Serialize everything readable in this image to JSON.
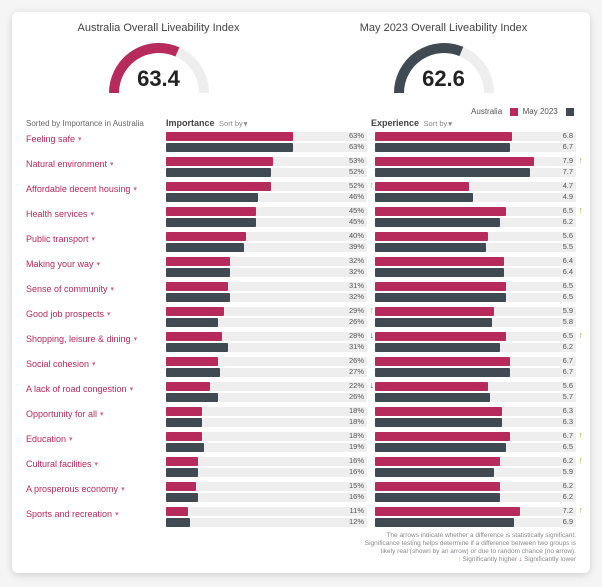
{
  "colors": {
    "primary": "#b62a5c",
    "secondary": "#3f4a52",
    "track": "#eeeeee",
    "sig_up": "#7bbf3f",
    "sig_down": "#b62a5c",
    "label_text": "#b62a5c",
    "muted": "#888888"
  },
  "gauges": [
    {
      "title": "Australia Overall Liveability Index",
      "value": "63.4",
      "fraction": 0.634,
      "arc_color": "#b62a5c"
    },
    {
      "title": "May 2023 Overall Liveability Index",
      "value": "62.6",
      "fraction": 0.626,
      "arc_color": "#3f4a52"
    }
  ],
  "legend": {
    "a_label": "Australia",
    "b_label": "May 2023"
  },
  "headers": {
    "sort_note": "Sorted by Importance in Australia",
    "col1": "Importance",
    "col2": "Experience",
    "sort_hint": "Sort by"
  },
  "groups": [
    {
      "name": "importance",
      "max": 100,
      "value_suffix": "%",
      "series": [
        {
          "key": "a",
          "color": "#b62a5c"
        },
        {
          "key": "b",
          "color": "#3f4a52"
        }
      ]
    },
    {
      "name": "experience",
      "max": 10,
      "value_suffix": "",
      "series": [
        {
          "key": "a",
          "color": "#b62a5c"
        },
        {
          "key": "b",
          "color": "#3f4a52"
        }
      ]
    }
  ],
  "rows": [
    {
      "label": "Feeling safe",
      "importance": {
        "a": 63,
        "b": 63
      },
      "experience": {
        "a": 6.8,
        "b": 6.7
      }
    },
    {
      "label": "Natural environment",
      "importance": {
        "a": 53,
        "b": 52
      },
      "experience": {
        "a": 7.9,
        "b": 7.7,
        "sig_a": "up"
      }
    },
    {
      "label": "Affordable decent housing",
      "importance": {
        "a": 52,
        "b": 46,
        "sig_a": "up"
      },
      "experience": {
        "a": 4.7,
        "b": 4.9
      }
    },
    {
      "label": "Health services",
      "importance": {
        "a": 45,
        "b": 45
      },
      "experience": {
        "a": 6.5,
        "b": 6.2,
        "sig_a": "up"
      }
    },
    {
      "label": "Public transport",
      "importance": {
        "a": 40,
        "b": 39
      },
      "experience": {
        "a": 5.6,
        "b": 5.5
      }
    },
    {
      "label": "Making your way",
      "importance": {
        "a": 32,
        "b": 32
      },
      "experience": {
        "a": 6.4,
        "b": 6.4
      }
    },
    {
      "label": "Sense of community",
      "importance": {
        "a": 31,
        "b": 32
      },
      "experience": {
        "a": 6.5,
        "b": 6.5
      }
    },
    {
      "label": "Good job prospects",
      "importance": {
        "a": 29,
        "b": 26,
        "sig_a": "up"
      },
      "experience": {
        "a": 5.9,
        "b": 5.8
      }
    },
    {
      "label": "Shopping, leisure & dining",
      "importance": {
        "a": 28,
        "b": 31,
        "sig_a": "down"
      },
      "experience": {
        "a": 6.5,
        "b": 6.2,
        "sig_a": "up"
      }
    },
    {
      "label": "Social cohesion",
      "importance": {
        "a": 26,
        "b": 27
      },
      "experience": {
        "a": 6.7,
        "b": 6.7
      }
    },
    {
      "label": "A lack of road congestion",
      "importance": {
        "a": 22,
        "b": 26,
        "sig_a": "down"
      },
      "experience": {
        "a": 5.6,
        "b": 5.7
      }
    },
    {
      "label": "Opportunity for all",
      "importance": {
        "a": 18,
        "b": 18
      },
      "experience": {
        "a": 6.3,
        "b": 6.3
      }
    },
    {
      "label": "Education",
      "importance": {
        "a": 18,
        "b": 19
      },
      "experience": {
        "a": 6.7,
        "b": 6.5,
        "sig_a": "up"
      }
    },
    {
      "label": "Cultural facilities",
      "importance": {
        "a": 16,
        "b": 16
      },
      "experience": {
        "a": 6.2,
        "b": 5.9,
        "sig_a": "up"
      }
    },
    {
      "label": "A prosperous economy",
      "importance": {
        "a": 15,
        "b": 16
      },
      "experience": {
        "a": 6.2,
        "b": 6.2
      }
    },
    {
      "label": "Sports and recreation",
      "importance": {
        "a": 11,
        "b": 12
      },
      "experience": {
        "a": 7.2,
        "b": 6.9,
        "sig_a": "up"
      }
    }
  ],
  "footnote": {
    "line1": "The arrows indicate whether a difference is statistically significant.",
    "line2": "Significance testing helps determine if a difference between two groups is",
    "line3": "likely real (shown by an arrow) or due to random chance (no arrow).",
    "line4_a": "Significantly higher",
    "line4_b": "Significantly lower"
  }
}
